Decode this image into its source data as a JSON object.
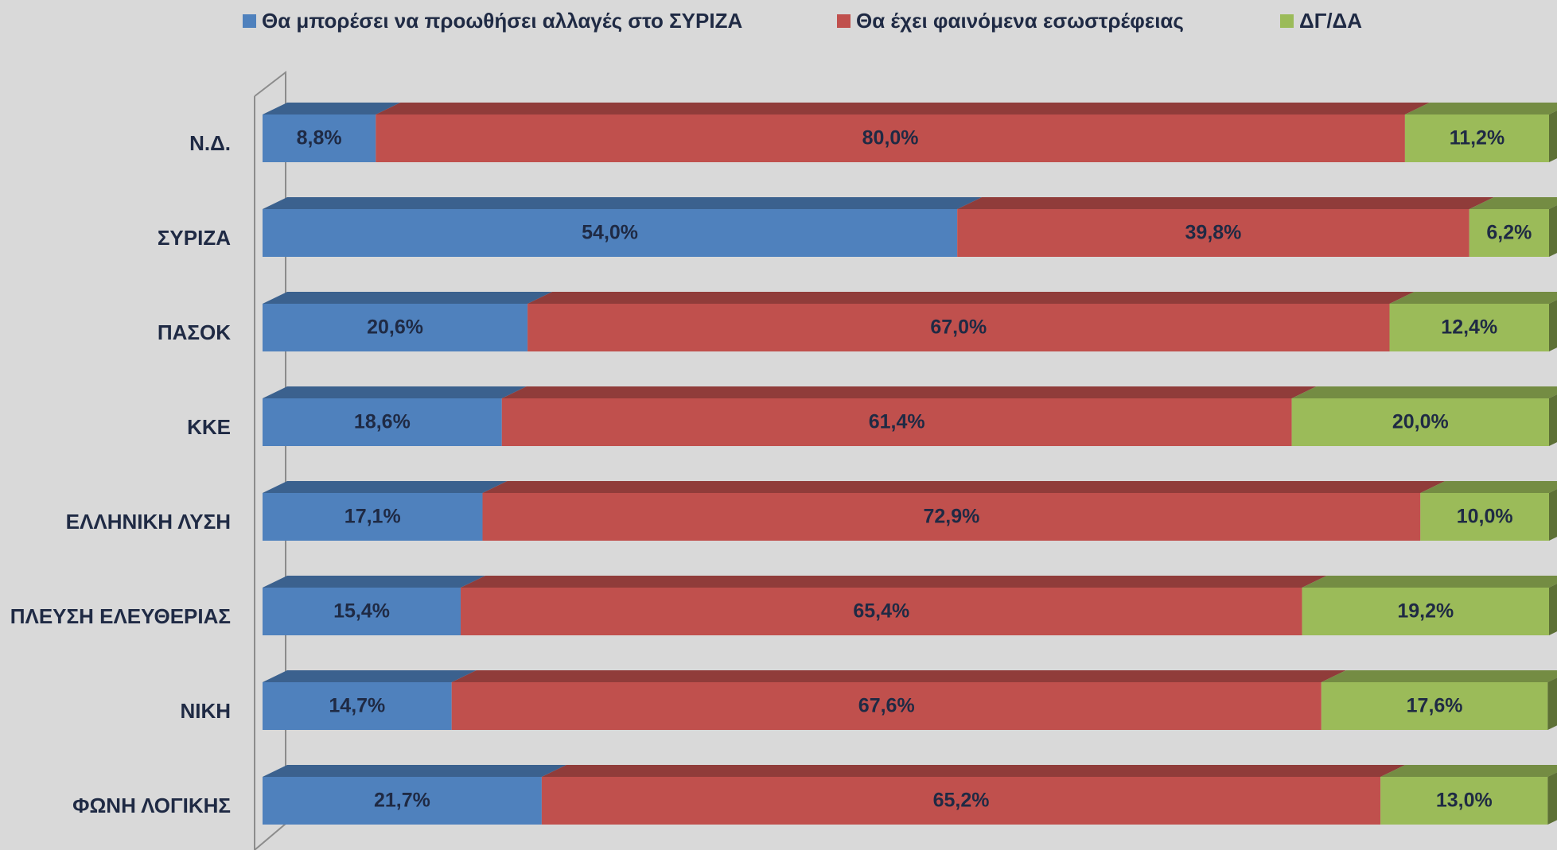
{
  "chart_data": {
    "type": "stacked_bar_3d",
    "orientation": "horizontal",
    "categories": [
      "Ν.Δ.",
      "ΣΥΡΙΖΑ",
      "ΠΑΣΟΚ",
      "ΚΚΕ",
      "ΕΛΛΗΝΙΚΗ ΛΥΣΗ",
      "ΠΛΕΥΣΗ ΕΛΕΥΘΕΡΙΑΣ",
      "ΝΙΚΗ",
      "ΦΩΝΗ ΛΟΓΙΚΗΣ"
    ],
    "xlim": [
      0,
      100
    ],
    "legend": "top",
    "series": [
      {
        "name": "Θα μπορέσει να προωθήσει αλλαγές στο ΣΥΡΙΖΑ",
        "color": "#4f81bd",
        "values": [
          8.8,
          54.0,
          20.6,
          18.6,
          17.1,
          15.4,
          14.7,
          21.7
        ],
        "value_labels": [
          "8,8%",
          "54,0%",
          "20,6%",
          "18,6%",
          "17,1%",
          "15,4%",
          "14,7%",
          "21,7%"
        ]
      },
      {
        "name": "Θα έχει φαινόμενα εσωστρέφειας",
        "color": "#c0504d",
        "values": [
          80.0,
          39.8,
          67.0,
          61.4,
          72.9,
          65.4,
          67.6,
          65.2
        ],
        "value_labels": [
          "80,0%",
          "39,8%",
          "67,0%",
          "61,4%",
          "72,9%",
          "65,4%",
          "67,6%",
          "65,2%"
        ]
      },
      {
        "name": "ΔΓ/ΔΑ",
        "color": "#9bbb59",
        "values": [
          11.2,
          6.2,
          12.4,
          20.0,
          10.0,
          19.2,
          17.6,
          13.0
        ],
        "value_labels": [
          "11,2%",
          "6,2%",
          "12,4%",
          "20,0%",
          "10,0%",
          "19,2%",
          "17,6%",
          "13,0%"
        ]
      }
    ]
  }
}
